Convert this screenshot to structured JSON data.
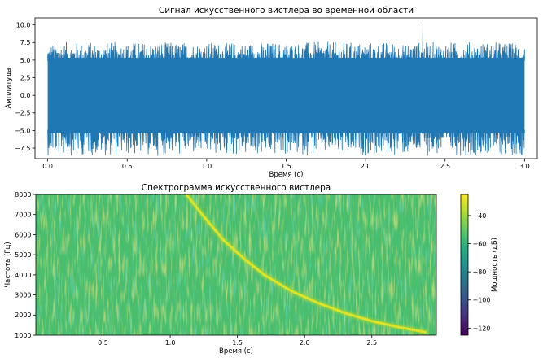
{
  "chart_data": [
    {
      "type": "line",
      "title": "Сигнал искусственного вистлера во временной области",
      "xlabel": "Время (с)",
      "ylabel": "Амплитуда",
      "xlim": [
        -0.08,
        3.08
      ],
      "ylim": [
        -9.0,
        11.0
      ],
      "xticks": [
        0.0,
        0.5,
        1.0,
        1.5,
        2.0,
        2.5,
        3.0
      ],
      "xtick_labels": [
        "0.0",
        "0.5",
        "1.0",
        "1.5",
        "2.0",
        "2.5",
        "3.0"
      ],
      "yticks": [
        -7.5,
        -5.0,
        -2.5,
        0.0,
        2.5,
        5.0,
        7.5,
        10.0
      ],
      "ytick_labels": [
        "−7.5",
        "−5.0",
        "−2.5",
        "0.0",
        "2.5",
        "5.0",
        "7.5",
        "10.0"
      ],
      "series_color": "#1f77b4",
      "signal": {
        "t_start": 0.0,
        "t_end": 3.0,
        "typical_max": 5.3,
        "typical_min": -5.3,
        "peak_max": 10.2,
        "peak_max_time": 2.36,
        "peak_min": -8.6
      },
      "grid": false,
      "legend": false
    },
    {
      "type": "heatmap",
      "title": "Спектрограмма искусственного вистлера",
      "xlabel": "Время (с)",
      "ylabel": "Частота (Гц)",
      "xlim": [
        0.0,
        2.98
      ],
      "ylim": [
        1000,
        8000
      ],
      "xticks": [
        0.5,
        1.0,
        1.5,
        2.0,
        2.5
      ],
      "xtick_labels": [
        "0.5",
        "1.0",
        "1.5",
        "2.0",
        "2.5"
      ],
      "yticks": [
        1000,
        2000,
        3000,
        4000,
        5000,
        6000,
        7000,
        8000
      ],
      "ytick_labels": [
        "1000",
        "2000",
        "3000",
        "4000",
        "5000",
        "6000",
        "7000",
        "8000"
      ],
      "colormap": "viridis",
      "background_level_db": -55,
      "whistler_trace": {
        "time": [
          1.12,
          1.25,
          1.4,
          1.55,
          1.7,
          1.9,
          2.1,
          2.3,
          2.5,
          2.7,
          2.9
        ],
        "frequency": [
          8000,
          6900,
          5700,
          4800,
          4000,
          3200,
          2600,
          2100,
          1700,
          1400,
          1150
        ],
        "level_db": -30
      },
      "colorbar": {
        "label": "Мощность (дБ)",
        "range": [
          -125,
          -25
        ],
        "ticks": [
          -40,
          -60,
          -80,
          -100,
          -120
        ],
        "tick_labels": [
          "−40",
          "−60",
          "−80",
          "−100",
          "−120"
        ]
      },
      "grid": false,
      "legend": false
    }
  ]
}
